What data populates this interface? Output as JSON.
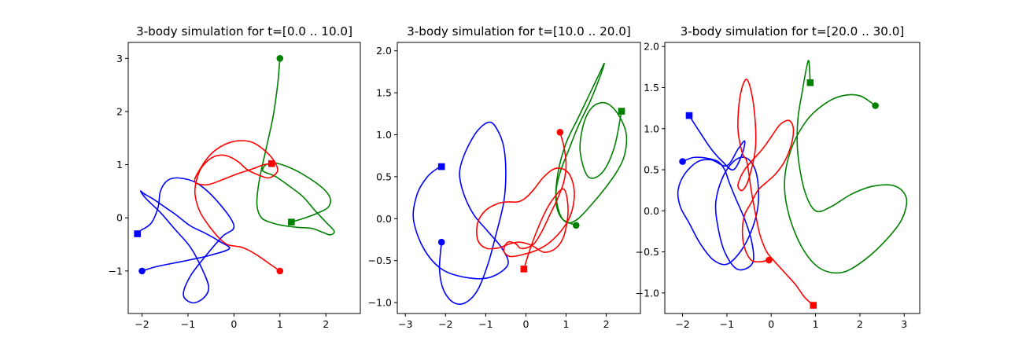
{
  "colors": {
    "body1": "#0000ff",
    "body2": "#008000",
    "body3": "#ff0000"
  },
  "chart_data": [
    {
      "type": "line",
      "title": "3-body simulation for t=[0.0 .. 10.0]",
      "xlim": [
        -2.3,
        2.75
      ],
      "ylim": [
        -1.8,
        3.3
      ],
      "xticks": [
        -2,
        -1,
        0,
        1,
        2
      ],
      "xtick_labels": [
        "−2",
        "−1",
        "0",
        "1",
        "2"
      ],
      "yticks": [
        -1,
        0,
        1,
        2,
        3
      ],
      "ytick_labels": [
        "−1",
        "0",
        "1",
        "2",
        "3"
      ],
      "grid": false,
      "legend": "none",
      "series": [
        {
          "color": "blue",
          "start_marker": "circle",
          "end_marker": "square",
          "x": [
            -2.0,
            -1.7,
            -1.3,
            -0.9,
            -0.5,
            -0.1,
            -0.3,
            -0.6,
            -0.95,
            -1.25,
            -1.5,
            -1.75,
            -1.95,
            -2.03,
            -1.9,
            -1.6,
            -1.3,
            -0.95,
            -0.7,
            -0.55,
            -0.65,
            -0.9,
            -1.1,
            -0.95,
            -0.6,
            -0.25,
            0.0,
            -0.35,
            -0.8,
            -1.2,
            -1.45,
            -1.6,
            -1.65,
            -1.8,
            -2.05,
            -2.1
          ],
          "y": [
            -1.0,
            -0.92,
            -0.85,
            -0.78,
            -0.7,
            -0.58,
            -0.45,
            -0.3,
            -0.15,
            0.05,
            0.2,
            0.35,
            0.45,
            0.5,
            0.35,
            0.1,
            -0.2,
            -0.55,
            -0.95,
            -1.3,
            -1.5,
            -1.6,
            -1.45,
            -1.1,
            -0.7,
            -0.35,
            -0.15,
            0.3,
            0.65,
            0.75,
            0.7,
            0.5,
            0.2,
            -0.1,
            -0.25,
            -0.3
          ]
        },
        {
          "color": "green",
          "start_marker": "circle",
          "end_marker": "square",
          "x": [
            1.0,
            0.95,
            0.85,
            0.7,
            0.55,
            0.5,
            0.6,
            0.85,
            1.1,
            1.4,
            1.7,
            1.95,
            2.1,
            2.18,
            2.0,
            1.75,
            1.5,
            1.2,
            0.9,
            0.7,
            0.62,
            0.7,
            0.9,
            1.2,
            1.5,
            1.8,
            2.0,
            2.1,
            2.05,
            1.85,
            1.55,
            1.25
          ],
          "y": [
            3.0,
            2.5,
            1.9,
            1.3,
            0.7,
            0.25,
            0.0,
            -0.1,
            -0.15,
            -0.18,
            -0.2,
            -0.28,
            -0.32,
            -0.25,
            -0.08,
            0.15,
            0.4,
            0.6,
            0.78,
            0.85,
            0.9,
            1.0,
            1.03,
            0.95,
            0.82,
            0.65,
            0.5,
            0.35,
            0.2,
            0.1,
            0.0,
            -0.08
          ]
        },
        {
          "color": "red",
          "start_marker": "circle",
          "end_marker": "square",
          "x": [
            1.0,
            0.75,
            0.5,
            0.3,
            0.15,
            0.0,
            -0.15,
            -0.3,
            -0.5,
            -0.7,
            -0.8,
            -0.85,
            -0.8,
            -0.7,
            -0.5,
            -0.3,
            -0.1,
            0.1,
            0.3,
            0.55,
            0.75,
            0.9,
            0.95,
            0.85,
            0.65,
            0.4,
            0.1,
            -0.2,
            -0.5,
            -0.75,
            -0.85,
            -0.6,
            -0.3,
            0.05,
            0.4,
            0.65,
            0.82
          ],
          "y": [
            -1.0,
            -0.85,
            -0.7,
            -0.6,
            -0.55,
            -0.53,
            -0.5,
            -0.4,
            -0.2,
            0.05,
            0.25,
            0.5,
            0.75,
            0.95,
            1.12,
            1.18,
            1.15,
            1.05,
            0.9,
            0.8,
            0.75,
            0.82,
            0.92,
            1.1,
            1.28,
            1.42,
            1.45,
            1.38,
            1.2,
            0.9,
            0.68,
            0.62,
            0.7,
            0.82,
            0.92,
            1.0,
            1.02
          ]
        }
      ]
    },
    {
      "type": "line",
      "title": "3-body simulation for t=[10.0 .. 20.0]",
      "xlim": [
        -3.2,
        2.85
      ],
      "ylim": [
        -1.13,
        2.1
      ],
      "xticks": [
        -3,
        -2,
        -1,
        0,
        1,
        2
      ],
      "xtick_labels": [
        "−3",
        "−2",
        "−1",
        "0",
        "1",
        "2"
      ],
      "yticks": [
        -1.0,
        -0.5,
        0.0,
        0.5,
        1.0,
        1.5,
        2.0
      ],
      "ytick_labels": [
        "−1.0",
        "−0.5",
        "0.0",
        "0.5",
        "1.0",
        "1.5",
        "2.0"
      ],
      "grid": false,
      "legend": "none",
      "series": [
        {
          "color": "blue",
          "start_marker": "circle",
          "end_marker": "square",
          "x": [
            -2.1,
            -2.15,
            -2.05,
            -1.8,
            -1.5,
            -1.2,
            -0.95,
            -0.75,
            -0.55,
            -0.5,
            -0.55,
            -0.7,
            -0.9,
            -1.2,
            -1.5,
            -1.65,
            -1.55,
            -1.3,
            -0.95,
            -0.6,
            -0.45,
            -0.9,
            -1.5,
            -2.1,
            -2.55,
            -2.8,
            -2.7,
            -2.45,
            -2.2,
            -2.1
          ],
          "y": [
            -0.28,
            -0.6,
            -0.85,
            -1.0,
            -1.0,
            -0.85,
            -0.55,
            -0.2,
            0.2,
            0.55,
            0.85,
            1.05,
            1.15,
            1.05,
            0.8,
            0.55,
            0.3,
            0.05,
            -0.15,
            -0.35,
            -0.55,
            -0.7,
            -0.7,
            -0.6,
            -0.35,
            0.0,
            0.3,
            0.5,
            0.6,
            0.62
          ]
        },
        {
          "color": "green",
          "start_marker": "circle",
          "end_marker": "square",
          "x": [
            1.25,
            0.9,
            0.75,
            0.8,
            1.0,
            1.3,
            1.6,
            1.85,
            1.95,
            1.85,
            1.6,
            1.3,
            1.05,
            0.85,
            0.75,
            0.85,
            1.05,
            1.3,
            1.6,
            1.95,
            2.25,
            2.45,
            2.5,
            2.35,
            2.1,
            1.85,
            1.6,
            1.42,
            1.35,
            1.55,
            1.9,
            2.2,
            2.38
          ],
          "y": [
            -0.08,
            0.0,
            0.2,
            0.55,
            0.9,
            1.2,
            1.5,
            1.75,
            1.85,
            1.7,
            1.4,
            1.1,
            0.8,
            0.55,
            0.3,
            0.05,
            -0.05,
            0.0,
            0.15,
            0.35,
            0.55,
            0.75,
            1.0,
            1.2,
            1.35,
            1.38,
            1.3,
            1.1,
            0.8,
            0.5,
            0.55,
            0.85,
            1.28
          ]
        },
        {
          "color": "red",
          "start_marker": "circle",
          "end_marker": "square",
          "x": [
            0.85,
            0.95,
            1.0,
            0.95,
            0.8,
            0.6,
            0.4,
            0.2,
            0.0,
            -0.15,
            -0.25,
            -0.45,
            -0.55,
            -0.4,
            -0.1,
            0.25,
            0.6,
            0.95,
            1.15,
            1.2,
            1.05,
            0.75,
            0.45,
            0.2,
            0.0,
            -0.2,
            -0.45,
            -0.7,
            -1.0,
            -1.2,
            -1.2,
            -1.0,
            -0.7,
            -0.4,
            -0.15,
            0.15,
            0.45,
            0.75,
            0.95,
            1.05,
            0.95,
            0.7,
            0.45,
            0.15,
            -0.05
          ],
          "y": [
            1.03,
            0.85,
            0.65,
            0.45,
            0.25,
            0.05,
            -0.15,
            -0.3,
            -0.35,
            -0.35,
            -0.3,
            -0.28,
            -0.38,
            -0.45,
            -0.43,
            -0.38,
            -0.28,
            -0.1,
            0.1,
            0.35,
            0.55,
            0.6,
            0.5,
            0.35,
            0.25,
            0.2,
            0.2,
            0.18,
            0.1,
            -0.05,
            -0.25,
            -0.35,
            -0.35,
            -0.3,
            -0.28,
            -0.32,
            -0.4,
            -0.35,
            -0.2,
            0.1,
            0.35,
            0.25,
            0.05,
            -0.3,
            -0.6
          ]
        }
      ]
    },
    {
      "type": "line",
      "title": "3-body simulation for t=[20.0 .. 30.0]",
      "xlim": [
        -2.4,
        3.35
      ],
      "ylim": [
        -1.25,
        2.05
      ],
      "xticks": [
        -2,
        -1,
        0,
        1,
        2,
        3
      ],
      "xtick_labels": [
        "−2",
        "−1",
        "0",
        "1",
        "2",
        "3"
      ],
      "yticks": [
        -1.0,
        -0.5,
        0.0,
        0.5,
        1.0,
        1.5,
        2.0
      ],
      "ytick_labels": [
        "−1.0",
        "−0.5",
        "0.0",
        "0.5",
        "1.0",
        "1.5",
        "2.0"
      ],
      "grid": false,
      "legend": "none",
      "series": [
        {
          "color": "blue",
          "start_marker": "circle",
          "end_marker": "square",
          "x": [
            -2.0,
            -1.75,
            -1.45,
            -1.2,
            -1.05,
            -0.95,
            -0.8,
            -0.6,
            -0.45,
            -0.4,
            -0.55,
            -0.8,
            -1.05,
            -1.2,
            -1.25,
            -1.1,
            -0.85,
            -0.6,
            -0.4,
            -0.3,
            -0.3,
            -0.45,
            -0.7,
            -1.0,
            -1.3,
            -1.6,
            -1.85,
            -2.05,
            -2.1,
            -1.95,
            -1.65,
            -1.35,
            -1.0,
            -0.75,
            -0.6,
            -0.65,
            -0.85,
            -1.1,
            -1.35,
            -1.6,
            -1.85
          ],
          "y": [
            0.6,
            0.65,
            0.64,
            0.6,
            0.5,
            0.35,
            0.15,
            -0.1,
            -0.35,
            -0.6,
            -0.7,
            -0.7,
            -0.5,
            -0.2,
            0.1,
            0.4,
            0.6,
            0.65,
            0.55,
            0.35,
            0.05,
            -0.25,
            -0.5,
            -0.65,
            -0.6,
            -0.4,
            -0.15,
            0.05,
            0.25,
            0.45,
            0.6,
            0.62,
            0.55,
            0.75,
            0.85,
            0.7,
            0.5,
            0.6,
            0.75,
            0.95,
            1.16
          ]
        },
        {
          "color": "green",
          "start_marker": "circle",
          "end_marker": "square",
          "x": [
            2.35,
            2.0,
            1.6,
            1.2,
            0.8,
            0.45,
            0.3,
            0.4,
            0.7,
            1.1,
            1.6,
            2.1,
            2.6,
            2.95,
            3.05,
            2.8,
            2.3,
            1.8,
            1.35,
            1.0,
            0.75,
            0.6,
            0.6,
            0.7,
            0.8,
            0.85,
            0.88
          ],
          "y": [
            1.28,
            1.4,
            1.4,
            1.3,
            1.1,
            0.75,
            0.35,
            -0.05,
            -0.45,
            -0.7,
            -0.75,
            -0.6,
            -0.35,
            -0.1,
            0.15,
            0.3,
            0.3,
            0.2,
            0.05,
            0.0,
            0.25,
            0.7,
            1.1,
            1.45,
            1.75,
            1.82,
            1.56
          ]
        },
        {
          "color": "red",
          "start_marker": "circle",
          "end_marker": "square",
          "x": [
            -0.05,
            -0.25,
            -0.45,
            -0.6,
            -0.65,
            -0.6,
            -0.45,
            -0.3,
            -0.1,
            0.1,
            0.3,
            0.45,
            0.5,
            0.4,
            0.2,
            0.0,
            -0.2,
            -0.45,
            -0.6,
            -0.7,
            -0.75,
            -0.65,
            -0.5,
            -0.35,
            -0.4,
            -0.55,
            -0.7,
            -0.75,
            -0.65,
            -0.55,
            -0.45,
            -0.35,
            -0.25,
            -0.1,
            0.05,
            0.3,
            0.55,
            0.75,
            0.95
          ],
          "y": [
            -0.6,
            -0.62,
            -0.6,
            -0.45,
            -0.25,
            -0.05,
            0.1,
            0.25,
            0.35,
            0.45,
            0.6,
            0.8,
            1.0,
            1.1,
            1.05,
            0.9,
            0.75,
            0.6,
            0.5,
            0.4,
            0.3,
            0.25,
            0.4,
            0.8,
            1.3,
            1.6,
            1.4,
            1.0,
            0.7,
            0.6,
            0.25,
            -0.05,
            -0.3,
            -0.5,
            -0.6,
            -0.75,
            -0.9,
            -1.05,
            -1.15
          ]
        }
      ]
    }
  ]
}
